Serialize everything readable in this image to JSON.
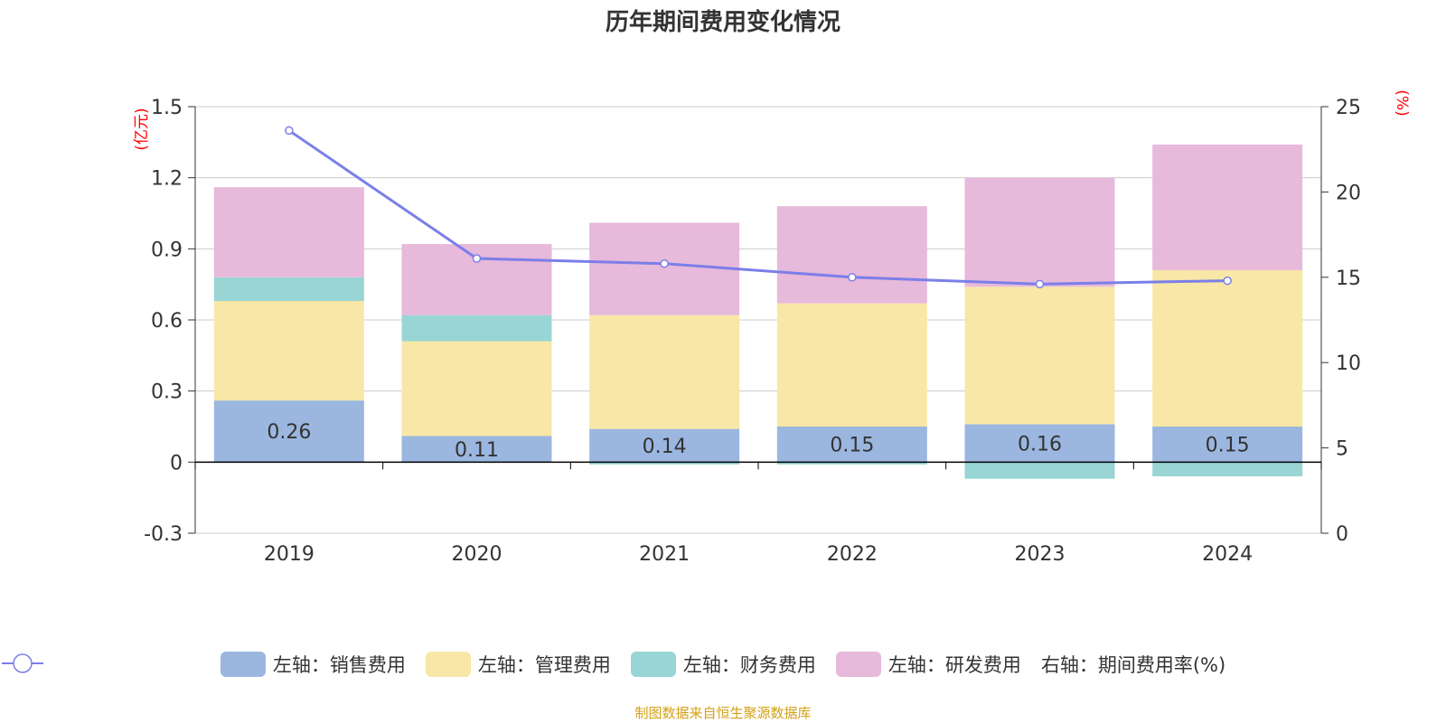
{
  "title": "历年期间费用变化情况",
  "source_text": "制图数据来自恒生聚源数据库",
  "colors": {
    "sales": "#9bb7e0",
    "admin": "#f8e7a7",
    "finance": "#98d5d4",
    "rd": "#e7b9da",
    "ratio": "#7b7fe8",
    "axis_unit": "#ff0000",
    "source": "#d4a017",
    "grid": "#cccccc",
    "text": "#333333"
  },
  "chart_data": {
    "type": "bar",
    "title": "历年期间费用变化情况",
    "categories": [
      "2019",
      "2020",
      "2021",
      "2022",
      "2023",
      "2024"
    ],
    "y_left_unit": "(亿元)",
    "y_right_unit": "(%)",
    "y_left_ticks": [
      "1.5",
      "1.2",
      "0.9",
      "0.6",
      "0.3",
      "0",
      "-0.3"
    ],
    "y_right_ticks": [
      "25",
      "20",
      "15",
      "10",
      "5",
      "0"
    ],
    "ylim_left": [
      -0.3,
      1.5
    ],
    "ylim_right": [
      0,
      25
    ],
    "stacked": true,
    "grid": true,
    "legend_position": "bottom",
    "series": [
      {
        "name": "左轴：销售费用",
        "key": "sales",
        "values": [
          0.26,
          0.11,
          0.14,
          0.15,
          0.16,
          0.15
        ],
        "data_labels": [
          "0.26",
          "0.11",
          "0.14",
          "0.15",
          "0.16",
          "0.15"
        ]
      },
      {
        "name": "左轴：管理费用",
        "key": "admin",
        "values": [
          0.42,
          0.4,
          0.48,
          0.52,
          0.58,
          0.66
        ]
      },
      {
        "name": "左轴：财务费用",
        "key": "finance",
        "values": [
          0.1,
          0.11,
          -0.01,
          -0.01,
          -0.07,
          -0.06
        ]
      },
      {
        "name": "左轴：研发费用",
        "key": "rd",
        "values": [
          0.38,
          0.3,
          0.39,
          0.41,
          0.46,
          0.53
        ]
      },
      {
        "name": "右轴：期间费用率(%)",
        "key": "ratio",
        "type": "line",
        "axis": "right",
        "values": [
          23.6,
          16.1,
          15.8,
          15.0,
          14.6,
          14.8
        ]
      }
    ]
  }
}
